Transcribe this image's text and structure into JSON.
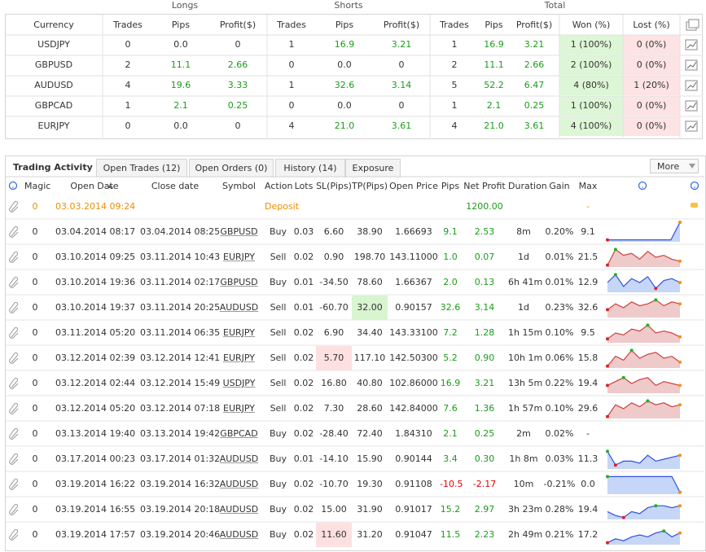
{
  "summary": {
    "groups": [
      "Longs",
      "Shorts",
      "Total"
    ],
    "headers": [
      "Currency",
      "Trades",
      "Pips",
      "Profit($)",
      "Trades",
      "Pips",
      "Profit($)",
      "Trades",
      "Pips",
      "Profit($)",
      "Won (%)",
      "Lost (%)"
    ],
    "rows": [
      [
        "USDJPY",
        "0",
        "0.0",
        "0",
        "1",
        "16.9",
        "3.21",
        "1",
        "16.9",
        "3.21",
        "1 (100%)",
        "0 (0%)"
      ],
      [
        "GBPUSD",
        "2",
        "11.1",
        "2.66",
        "0",
        "0.0",
        "0",
        "2",
        "11.1",
        "2.66",
        "2 (100%)",
        "0 (0%)"
      ],
      [
        "AUDUSD",
        "4",
        "19.6",
        "3.33",
        "1",
        "32.6",
        "3.14",
        "5",
        "52.2",
        "6.47",
        "4 (80%)",
        "1 (20%)"
      ],
      [
        "GBPCAD",
        "1",
        "2.1",
        "0.25",
        "0",
        "0.0",
        "0",
        "1",
        "2.1",
        "0.25",
        "1 (100%)",
        "0 (0%)"
      ],
      [
        "EURJPY",
        "0",
        "0.0",
        "0",
        "4",
        "21.0",
        "3.61",
        "4",
        "21.0",
        "3.61",
        "4 (100%)",
        "0 (0%)"
      ]
    ]
  },
  "activity": {
    "title": "Trading Activity",
    "tabs": [
      "Open Trades (12)",
      "Open Orders (0)",
      "History (14)",
      "Exposure"
    ],
    "more": "More",
    "headers": [
      "Magic",
      "Open Date",
      "Close date",
      "Symbol",
      "Action",
      "Lots",
      "SL(Pips)",
      "TP(Pips)",
      "Open Price",
      "Pips",
      "Net Profit",
      "Duration",
      "Gain",
      "Max"
    ],
    "rows": [
      {
        "magic": "0",
        "open_date": "03.03.2014 09:24",
        "action": "Deposit",
        "net_profit": "1200.00",
        "max": "-"
      },
      {
        "magic": "0",
        "open_date": "03.04.2014 08:17",
        "close_date": "03.04.2014 08:25",
        "symbol": "GBPUSD",
        "action": "Buy",
        "lots": "0.03",
        "sl": "6.60",
        "tp": "38.90",
        "open_price": "1.66693",
        "pips": "9.1",
        "net_profit": "2.53",
        "duration": "8m",
        "gain": "0.20%",
        "max": "9.1"
      },
      {
        "magic": "0",
        "open_date": "03.10.2014 09:25",
        "close_date": "03.11.2014 10:43",
        "symbol": "EURJPY",
        "action": "Sell",
        "lots": "0.02",
        "sl": "0.90",
        "tp": "198.70",
        "open_price": "143.11000",
        "pips": "1.0",
        "net_profit": "0.07",
        "duration": "1d",
        "gain": "0.01%",
        "max": "21.5"
      },
      {
        "magic": "0",
        "open_date": "03.10.2014 19:36",
        "close_date": "03.11.2014 02:17",
        "symbol": "GBPUSD",
        "action": "Buy",
        "lots": "0.01",
        "sl": "-34.50",
        "tp": "78.60",
        "open_price": "1.66367",
        "pips": "2.0",
        "net_profit": "0.13",
        "duration": "6h 41m",
        "gain": "0.01%",
        "max": "12.9"
      },
      {
        "magic": "0",
        "open_date": "03.10.2014 19:37",
        "close_date": "03.11.2014 20:25",
        "symbol": "AUDUSD",
        "action": "Sell",
        "lots": "0.01",
        "sl": "-60.70",
        "tp": "32.00",
        "open_price": "0.90157",
        "pips": "32.6",
        "net_profit": "3.14",
        "duration": "1d",
        "gain": "0.23%",
        "max": "32.6"
      },
      {
        "magic": "0",
        "open_date": "03.11.2014 05:20",
        "close_date": "03.11.2014 06:35",
        "symbol": "EURJPY",
        "action": "Sell",
        "lots": "0.02",
        "sl": "6.90",
        "tp": "34.40",
        "open_price": "143.33100",
        "pips": "7.2",
        "net_profit": "1.28",
        "duration": "1h 15m",
        "gain": "0.10%",
        "max": "9.5"
      },
      {
        "magic": "0",
        "open_date": "03.12.2014 02:39",
        "close_date": "03.12.2014 12:41",
        "symbol": "EURJPY",
        "action": "Sell",
        "lots": "0.02",
        "sl": "5.70",
        "tp": "117.10",
        "open_price": "142.50300",
        "pips": "5.2",
        "net_profit": "0.90",
        "duration": "10h 1m",
        "gain": "0.06%",
        "max": "15.8"
      },
      {
        "magic": "0",
        "open_date": "03.12.2014 02:44",
        "close_date": "03.12.2014 15:49",
        "symbol": "USDJPY",
        "action": "Sell",
        "lots": "0.02",
        "sl": "16.80",
        "tp": "40.80",
        "open_price": "102.86000",
        "pips": "16.9",
        "net_profit": "3.21",
        "duration": "13h 5m",
        "gain": "0.22%",
        "max": "19.4"
      },
      {
        "magic": "0",
        "open_date": "03.12.2014 05:20",
        "close_date": "03.12.2014 07:18",
        "symbol": "EURJPY",
        "action": "Sell",
        "lots": "0.02",
        "sl": "7.30",
        "tp": "28.60",
        "open_price": "142.84000",
        "pips": "7.6",
        "net_profit": "1.36",
        "duration": "1h 57m",
        "gain": "0.10%",
        "max": "29.6"
      },
      {
        "magic": "0",
        "open_date": "03.13.2014 19:40",
        "close_date": "03.13.2014 19:42",
        "symbol": "GBPCAD",
        "action": "Buy",
        "lots": "0.02",
        "sl": "-28.40",
        "tp": "72.40",
        "open_price": "1.84310",
        "pips": "2.1",
        "net_profit": "0.25",
        "duration": "2m",
        "gain": "0.02%",
        "max": "-"
      },
      {
        "magic": "0",
        "open_date": "03.17.2014 00:23",
        "close_date": "03.17.2014 01:32",
        "symbol": "AUDUSD",
        "action": "Buy",
        "lots": "0.01",
        "sl": "-14.10",
        "tp": "15.90",
        "open_price": "0.90144",
        "pips": "3.4",
        "net_profit": "0.30",
        "duration": "1h 8m",
        "gain": "0.03%",
        "max": "11.3"
      },
      {
        "magic": "0",
        "open_date": "03.19.2014 16:22",
        "close_date": "03.19.2014 16:32",
        "symbol": "AUDUSD",
        "action": "Buy",
        "lots": "0.02",
        "sl": "-10.70",
        "tp": "19.30",
        "open_price": "0.91108",
        "pips": "-10.5",
        "net_profit": "-2.17",
        "duration": "10m",
        "gain": "-0.21%",
        "max": "0.0"
      },
      {
        "magic": "0",
        "open_date": "03.19.2014 16:55",
        "close_date": "03.19.2014 20:18",
        "symbol": "AUDUSD",
        "action": "Buy",
        "lots": "0.02",
        "sl": "15.00",
        "tp": "31.90",
        "open_price": "0.91017",
        "pips": "15.2",
        "net_profit": "2.97",
        "duration": "3h 23m",
        "gain": "0.28%",
        "max": "19.4"
      },
      {
        "magic": "0",
        "open_date": "03.19.2014 17:57",
        "close_date": "03.19.2014 20:46",
        "symbol": "AUDUSD",
        "action": "Buy",
        "lots": "0.02",
        "sl": "11.60",
        "tp": "31.20",
        "open_price": "0.91047",
        "pips": "11.5",
        "net_profit": "2.23",
        "duration": "2h 49m",
        "gain": "0.21%",
        "max": "17.2"
      }
    ]
  }
}
